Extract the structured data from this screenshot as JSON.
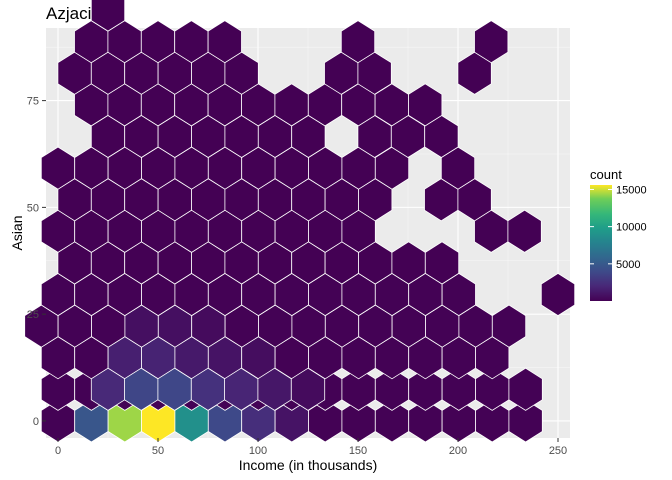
{
  "chart_data": {
    "type": "heatmap",
    "subtype": "hexbin",
    "title": "Azjaci",
    "xlabel": "Income (in thousands)",
    "ylabel": "Asian",
    "xlim": [
      -6,
      256
    ],
    "ylim": [
      -4,
      92
    ],
    "x_ticks": [
      0,
      50,
      100,
      150,
      200,
      250
    ],
    "y_ticks": [
      0,
      25,
      50,
      75
    ],
    "grid": true,
    "hex_width": 16.7,
    "hex_row_height": 7.4,
    "colorscale": "viridis",
    "legend": {
      "title": "count",
      "ticks": [
        5000,
        10000,
        15000
      ],
      "range": [
        1,
        15600
      ],
      "placement": "right"
    },
    "high_count_bins": [
      {
        "x": 16.6,
        "y": 0,
        "count": 4700
      },
      {
        "x": 33.3,
        "y": 0,
        "count": 14300
      },
      {
        "x": 50.0,
        "y": 0,
        "count": 15600
      },
      {
        "x": 66.6,
        "y": 0,
        "count": 8800
      },
      {
        "x": 83.3,
        "y": 0,
        "count": 3900
      },
      {
        "x": 100.0,
        "y": 0,
        "count": 2300
      },
      {
        "x": 116.6,
        "y": 0,
        "count": 900
      },
      {
        "x": 25.0,
        "y": 7.4,
        "count": 2000
      },
      {
        "x": 41.6,
        "y": 7.4,
        "count": 3700
      },
      {
        "x": 58.3,
        "y": 7.4,
        "count": 3800
      },
      {
        "x": 75.0,
        "y": 7.4,
        "count": 2500
      },
      {
        "x": 91.6,
        "y": 7.4,
        "count": 1800
      },
      {
        "x": 108.3,
        "y": 7.4,
        "count": 1100
      },
      {
        "x": 125.0,
        "y": 7.4,
        "count": 500
      },
      {
        "x": 33.3,
        "y": 14.8,
        "count": 1500
      },
      {
        "x": 50.0,
        "y": 14.8,
        "count": 1700
      },
      {
        "x": 66.6,
        "y": 14.8,
        "count": 1200
      },
      {
        "x": 83.3,
        "y": 14.8,
        "count": 900
      },
      {
        "x": 100.0,
        "y": 14.8,
        "count": 600
      },
      {
        "x": 41.6,
        "y": 22.2,
        "count": 700
      },
      {
        "x": 58.3,
        "y": 22.2,
        "count": 700
      },
      {
        "x": 75.0,
        "y": 22.2,
        "count": 500
      }
    ],
    "occupied_rows": [
      {
        "y": 0,
        "x_from": 0,
        "x_to": 250,
        "count": 50
      },
      {
        "y": 7.4,
        "x_from": 0,
        "x_to": 241.6,
        "count": 50
      },
      {
        "y": 14.8,
        "x_from": 0,
        "x_to": 233.3,
        "count": 50
      },
      {
        "y": 22.2,
        "x_from": -8.3,
        "x_to": 241.6,
        "count": 40
      },
      {
        "y": 29.6,
        "x_from": 0,
        "x_to": 216.6,
        "count": 30
      },
      {
        "y": 29.6,
        "x_from": 250,
        "x_to": 250,
        "count": 5
      },
      {
        "y": 37.0,
        "x_from": 8.3,
        "x_to": 208.3,
        "count": 25
      },
      {
        "y": 44.4,
        "x_from": 0,
        "x_to": 166.6,
        "count": 25
      },
      {
        "y": 44.4,
        "x_from": 216.6,
        "x_to": 233.3,
        "count": 10
      },
      {
        "y": 51.8,
        "x_from": 8.3,
        "x_to": 175.0,
        "count": 20
      },
      {
        "y": 51.8,
        "x_from": 191.6,
        "x_to": 208.3,
        "count": 10
      },
      {
        "y": 59.2,
        "x_from": 0,
        "x_to": 183.3,
        "count": 15
      },
      {
        "y": 59.2,
        "x_from": 200.0,
        "x_to": 200.0,
        "count": 5
      },
      {
        "y": 66.6,
        "x_from": 25.0,
        "x_to": 141.6,
        "count": 12
      },
      {
        "y": 66.6,
        "x_from": 158.3,
        "x_to": 208.3,
        "count": 8
      },
      {
        "y": 74.0,
        "x_from": 16.6,
        "x_to": 200.0,
        "count": 10
      },
      {
        "y": 81.4,
        "x_from": 8.3,
        "x_to": 108.3,
        "count": 8
      },
      {
        "y": 81.4,
        "x_from": 141.6,
        "x_to": 158.3,
        "count": 5
      },
      {
        "y": 81.4,
        "x_from": 208.3,
        "x_to": 208.3,
        "count": 5
      },
      {
        "y": 88.8,
        "x_from": 16.6,
        "x_to": 91.6,
        "count": 6
      },
      {
        "y": 88.8,
        "x_from": 150.0,
        "x_to": 150.0,
        "count": 4
      },
      {
        "y": 88.8,
        "x_from": 216.6,
        "x_to": 216.6,
        "count": 4
      },
      {
        "y": 96.2,
        "x_from": 25.0,
        "x_to": 41.6,
        "count": 3
      }
    ],
    "empty_bins": [
      {
        "x": 150.0,
        "y": 66.6
      },
      {
        "x": 191.6,
        "y": 44.4
      },
      {
        "x": 200.0,
        "y": 44.4
      },
      {
        "x": 183.3,
        "y": 51.8
      }
    ]
  }
}
